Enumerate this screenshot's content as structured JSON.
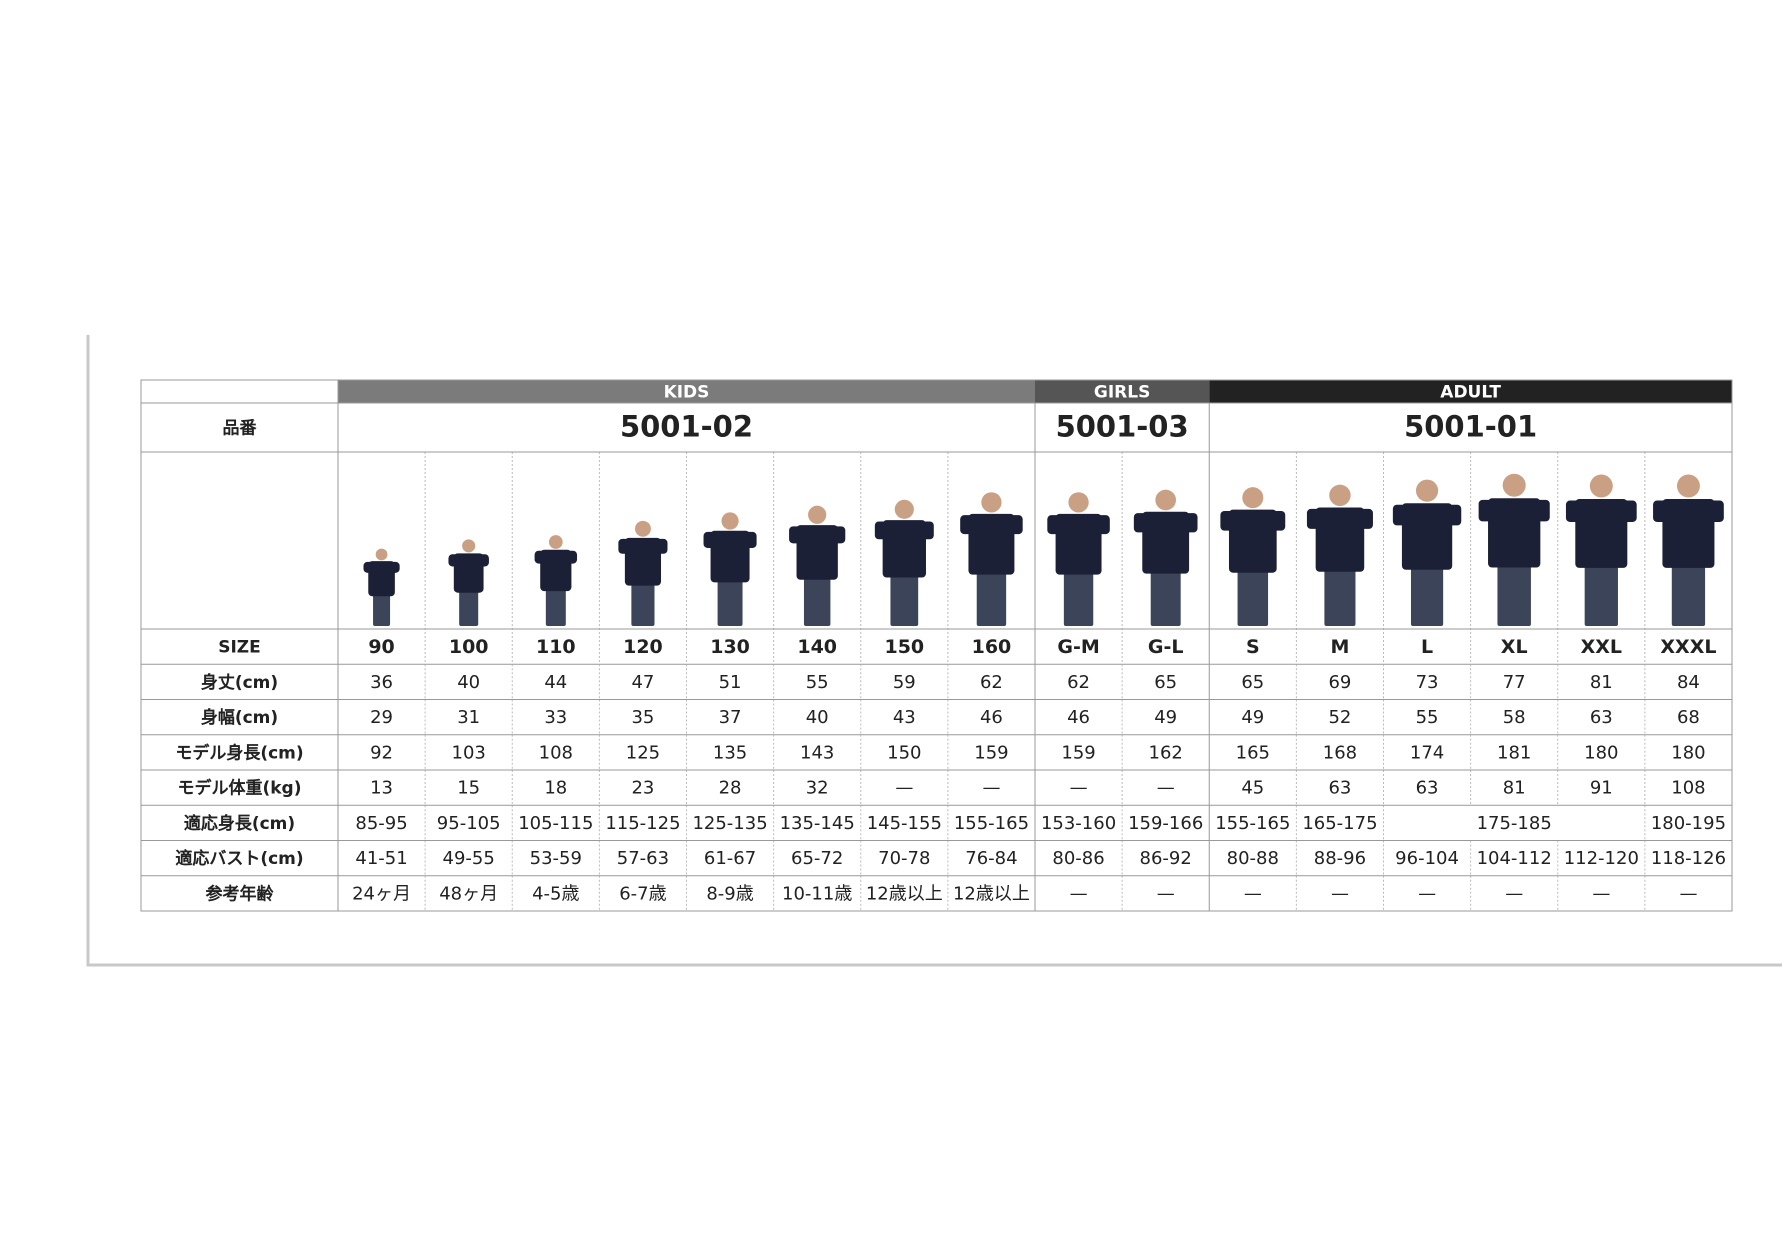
{
  "table": {
    "code_label": "品番",
    "size_label": "SIZE",
    "groups": [
      {
        "name": "KIDS",
        "code": "5001-02",
        "sizes": [
          "90",
          "100",
          "110",
          "120",
          "130",
          "140",
          "150",
          "160"
        ]
      },
      {
        "name": "GIRLS",
        "code": "5001-03",
        "sizes": [
          "G-M",
          "G-L"
        ]
      },
      {
        "name": "ADULT",
        "code": "5001-01",
        "sizes": [
          "S",
          "M",
          "L",
          "XL",
          "XXL",
          "XXXL"
        ]
      }
    ],
    "rows": [
      {
        "label": "身丈(cm)",
        "cells": [
          36,
          40,
          44,
          47,
          51,
          55,
          59,
          62,
          62,
          65,
          65,
          69,
          73,
          77,
          81,
          84
        ]
      },
      {
        "label": "身幅(cm)",
        "cells": [
          29,
          31,
          33,
          35,
          37,
          40,
          43,
          46,
          46,
          49,
          49,
          52,
          55,
          58,
          63,
          68
        ]
      },
      {
        "label": "モデル身長(cm)",
        "cells": [
          92,
          103,
          108,
          125,
          135,
          143,
          150,
          159,
          159,
          162,
          165,
          168,
          174,
          181,
          180,
          180
        ]
      },
      {
        "label": "モデル体重(kg)",
        "cells": [
          13,
          15,
          18,
          23,
          28,
          32,
          "—",
          "—",
          "—",
          "—",
          45,
          63,
          63,
          81,
          91,
          108
        ]
      },
      {
        "label": "適応身長(cm)",
        "cells": [
          "85-95",
          "95-105",
          "105-115",
          "115-125",
          "125-135",
          "135-145",
          "145-155",
          "155-165",
          "153-160",
          "159-166",
          "155-165",
          "165-175",
          "175-185",
          null,
          null,
          "180-195"
        ]
      },
      {
        "label": "適応バスト(cm)",
        "cells": [
          "41-51",
          "49-55",
          "53-59",
          "57-63",
          "61-67",
          "65-72",
          "70-78",
          "76-84",
          "80-86",
          "86-92",
          "80-88",
          "88-96",
          "96-104",
          "104-112",
          "112-120",
          "118-126"
        ]
      },
      {
        "label": "参考年齢",
        "cells": [
          "24ヶ月",
          "48ヶ月",
          "4-5歳",
          "6-7歳",
          "8-9歳",
          "10-11歳",
          "12歳以上",
          "12歳以上",
          "—",
          "—",
          "—",
          "—",
          "—",
          "—",
          "—",
          "—"
        ]
      }
    ]
  }
}
